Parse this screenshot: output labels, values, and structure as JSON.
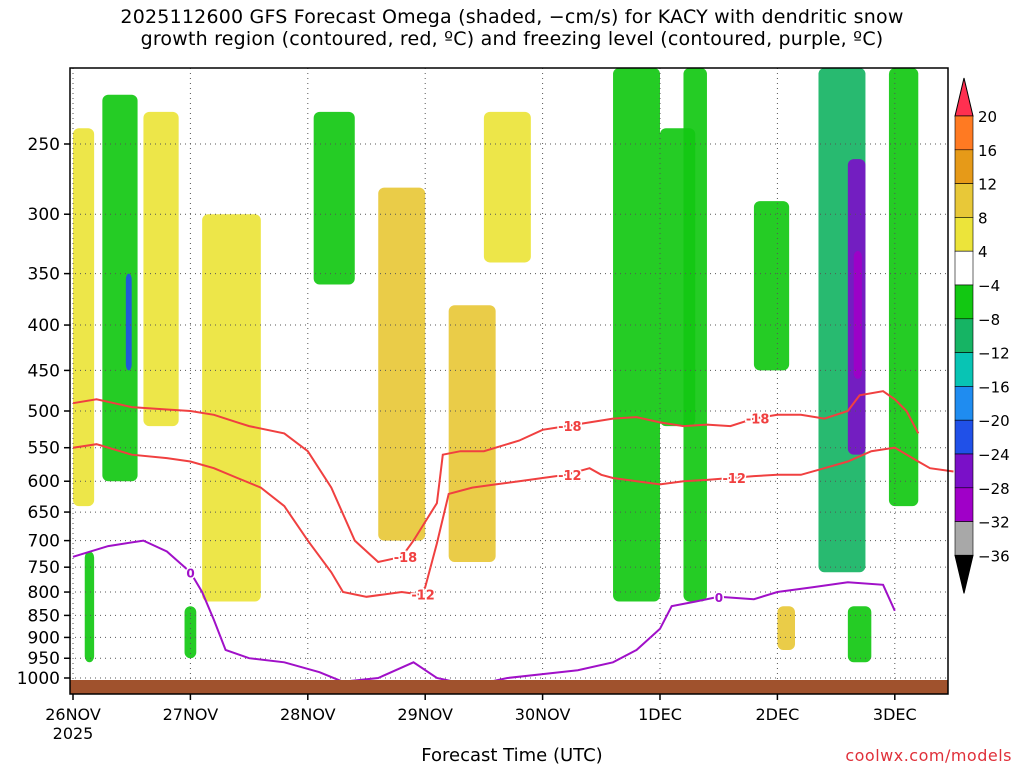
{
  "header": {
    "title_line1": "2025112600 GFS Forecast Omega (shaded, −cm/s) for KACY with dendritic snow",
    "title_line2": "growth region (contoured, red, ºC) and freezing level (contoured, purple, ºC)"
  },
  "footer": {
    "xlabel": "Forecast Time (UTC)",
    "credit": "coolwx.com/models"
  },
  "chart_data": {
    "type": "heatmap",
    "xlabel": "Forecast Time (UTC)",
    "ylabel": "",
    "x_ticks": [
      {
        "label": "26NOV",
        "sub": "2025",
        "value": 0
      },
      {
        "label": "27NOV",
        "sub": "",
        "value": 1
      },
      {
        "label": "28NOV",
        "sub": "",
        "value": 2
      },
      {
        "label": "29NOV",
        "sub": "",
        "value": 3
      },
      {
        "label": "30NOV",
        "sub": "",
        "value": 4
      },
      {
        "label": "1DEC",
        "sub": "",
        "value": 5
      },
      {
        "label": "2DEC",
        "sub": "",
        "value": 6
      },
      {
        "label": "3DEC",
        "sub": "",
        "value": 7
      }
    ],
    "xlim": [
      0,
      7.5
    ],
    "y_ticks": [
      250,
      300,
      350,
      400,
      450,
      500,
      550,
      600,
      650,
      700,
      750,
      800,
      850,
      900,
      950,
      1000
    ],
    "ylim": [
      1030,
      200
    ],
    "colorbar": {
      "labels": [
        "20",
        "16",
        "12",
        "8",
        "4",
        "−4",
        "−8",
        "−12",
        "−16",
        "−20",
        "−24",
        "−28",
        "−32",
        "−36"
      ],
      "colors": [
        "#ff3050",
        "#ff7a22",
        "#e69a18",
        "#e8c838",
        "#ece43a",
        "#ffffff",
        "#12c812",
        "#16b464",
        "#08c4b4",
        "#1f8cf0",
        "#2050e8",
        "#7a10c8",
        "#a000c8",
        "#a8a8a8",
        "#000000"
      ]
    },
    "contours": {
      "dgz": {
        "color": "#f04040",
        "levels": [
          {
            "label": "-18",
            "points": [
              [
                0,
                490
              ],
              [
                0.2,
                485
              ],
              [
                0.5,
                495
              ],
              [
                0.8,
                498
              ],
              [
                1.0,
                500
              ],
              [
                1.2,
                505
              ],
              [
                1.4,
                515
              ],
              [
                1.5,
                520
              ],
              [
                1.8,
                530
              ],
              [
                2.0,
                555
              ],
              [
                2.2,
                610
              ],
              [
                2.4,
                700
              ],
              [
                2.6,
                740
              ],
              [
                2.8,
                730
              ],
              [
                2.9,
                700
              ],
              [
                3.1,
                635
              ],
              [
                3.15,
                560
              ],
              [
                3.3,
                555
              ],
              [
                3.5,
                555
              ],
              [
                3.8,
                540
              ],
              [
                4.0,
                525
              ],
              [
                4.2,
                520
              ],
              [
                4.4,
                515
              ],
              [
                4.6,
                510
              ],
              [
                4.8,
                508
              ],
              [
                5.0,
                515
              ],
              [
                5.2,
                520
              ],
              [
                5.4,
                518
              ],
              [
                5.6,
                520
              ],
              [
                5.8,
                510
              ],
              [
                6.0,
                505
              ],
              [
                6.2,
                505
              ],
              [
                6.4,
                510
              ],
              [
                6.6,
                500
              ],
              [
                6.7,
                480
              ],
              [
                6.9,
                475
              ],
              [
                7.0,
                485
              ],
              [
                7.1,
                500
              ],
              [
                7.2,
                530
              ]
            ]
          },
          {
            "label": "-12",
            "points": [
              [
                0,
                550
              ],
              [
                0.2,
                545
              ],
              [
                0.5,
                560
              ],
              [
                0.8,
                565
              ],
              [
                1.0,
                570
              ],
              [
                1.2,
                580
              ],
              [
                1.4,
                595
              ],
              [
                1.6,
                610
              ],
              [
                1.8,
                640
              ],
              [
                2.0,
                700
              ],
              [
                2.2,
                760
              ],
              [
                2.3,
                800
              ],
              [
                2.5,
                810
              ],
              [
                2.8,
                800
              ],
              [
                2.95,
                805
              ],
              [
                3.0,
                790
              ],
              [
                3.1,
                705
              ],
              [
                3.2,
                620
              ],
              [
                3.4,
                610
              ],
              [
                3.6,
                605
              ],
              [
                3.8,
                600
              ],
              [
                4.0,
                595
              ],
              [
                4.2,
                590
              ],
              [
                4.4,
                580
              ],
              [
                4.5,
                590
              ],
              [
                4.6,
                595
              ],
              [
                4.8,
                600
              ],
              [
                5.0,
                605
              ],
              [
                5.2,
                600
              ],
              [
                5.4,
                598
              ],
              [
                5.6,
                595
              ],
              [
                5.8,
                592
              ],
              [
                6.0,
                590
              ],
              [
                6.2,
                590
              ],
              [
                6.4,
                580
              ],
              [
                6.6,
                570
              ],
              [
                6.8,
                555
              ],
              [
                7.0,
                550
              ],
              [
                7.2,
                570
              ],
              [
                7.3,
                580
              ],
              [
                7.5,
                585
              ]
            ]
          }
        ]
      },
      "freezing": {
        "color": "#a010c8",
        "label": "0",
        "points": [
          [
            0,
            730
          ],
          [
            0.3,
            710
          ],
          [
            0.6,
            700
          ],
          [
            0.8,
            720
          ],
          [
            1.0,
            760
          ],
          [
            1.1,
            800
          ],
          [
            1.2,
            860
          ],
          [
            1.3,
            930
          ],
          [
            1.5,
            950
          ],
          [
            1.8,
            960
          ],
          [
            2.1,
            985
          ],
          [
            2.3,
            1010
          ],
          [
            2.6,
            1000
          ],
          [
            2.9,
            960
          ],
          [
            3.1,
            1000
          ],
          [
            3.4,
            1020
          ],
          [
            3.7,
            1000
          ],
          [
            4.0,
            990
          ],
          [
            4.3,
            980
          ],
          [
            4.6,
            960
          ],
          [
            4.8,
            930
          ],
          [
            5.0,
            880
          ],
          [
            5.1,
            830
          ],
          [
            5.3,
            820
          ],
          [
            5.5,
            810
          ],
          [
            5.8,
            815
          ],
          [
            6.0,
            800
          ],
          [
            6.3,
            790
          ],
          [
            6.6,
            780
          ],
          [
            6.9,
            785
          ],
          [
            7.0,
            840
          ]
        ]
      }
    },
    "omega_regions": [
      {
        "x": [
          0.0,
          0.18
        ],
        "p": [
          240,
          640
        ],
        "level": "4"
      },
      {
        "x": [
          0.25,
          0.55
        ],
        "p": [
          220,
          600
        ],
        "level": "-8"
      },
      {
        "x": [
          0.45,
          0.5
        ],
        "p": [
          350,
          450
        ],
        "level": "-24"
      },
      {
        "x": [
          0.6,
          0.9
        ],
        "p": [
          230,
          520
        ],
        "level": "4"
      },
      {
        "x": [
          0.1,
          0.18
        ],
        "p": [
          720,
          960
        ],
        "level": "-8"
      },
      {
        "x": [
          0.95,
          1.05
        ],
        "p": [
          830,
          950
        ],
        "level": "-8"
      },
      {
        "x": [
          1.1,
          1.6
        ],
        "p": [
          300,
          820
        ],
        "level": "4"
      },
      {
        "x": [
          2.6,
          3.0
        ],
        "p": [
          280,
          700
        ],
        "level": "8"
      },
      {
        "x": [
          3.2,
          3.6
        ],
        "p": [
          380,
          740
        ],
        "level": "8"
      },
      {
        "x": [
          2.05,
          2.4
        ],
        "p": [
          230,
          360
        ],
        "level": "-8"
      },
      {
        "x": [
          3.5,
          3.9
        ],
        "p": [
          230,
          340
        ],
        "level": "4"
      },
      {
        "x": [
          4.6,
          5.0
        ],
        "p": [
          200,
          820
        ],
        "level": "-8"
      },
      {
        "x": [
          5.2,
          5.4
        ],
        "p": [
          200,
          820
        ],
        "level": "-8"
      },
      {
        "x": [
          5.8,
          6.1
        ],
        "p": [
          290,
          450
        ],
        "level": "-8"
      },
      {
        "x": [
          6.35,
          6.75
        ],
        "p": [
          200,
          760
        ],
        "level": "-12"
      },
      {
        "x": [
          6.6,
          6.75
        ],
        "p": [
          260,
          560
        ],
        "level": "-28"
      },
      {
        "x": [
          6.65,
          6.72
        ],
        "p": [
          330,
          460
        ],
        "level": "-32"
      },
      {
        "x": [
          6.95,
          7.2
        ],
        "p": [
          200,
          640
        ],
        "level": "-8"
      },
      {
        "x": [
          5.0,
          5.3
        ],
        "p": [
          240,
          520
        ],
        "level": "-8"
      },
      {
        "x": [
          6.0,
          6.15
        ],
        "p": [
          830,
          930
        ],
        "level": "8"
      },
      {
        "x": [
          6.6,
          6.8
        ],
        "p": [
          830,
          960
        ],
        "level": "-8"
      }
    ],
    "omega_contour_label": "0"
  }
}
